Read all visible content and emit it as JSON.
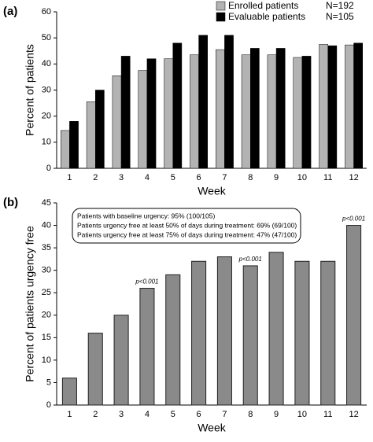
{
  "chart_data": [
    {
      "type": "bar",
      "panel_label": "(a)",
      "y_label": "Percent of patients",
      "x_label": "Week",
      "categories": [
        "1",
        "2",
        "3",
        "4",
        "5",
        "6",
        "7",
        "8",
        "9",
        "10",
        "11",
        "12"
      ],
      "series": [
        {
          "name": "Enrolled patients",
          "n": "N=192",
          "color": "#b3b3b3",
          "values": [
            14.5,
            25.5,
            35.5,
            37.5,
            42,
            43.5,
            45.5,
            43.5,
            43.5,
            42.5,
            47.5,
            47.3
          ]
        },
        {
          "name": "Evaluable patients",
          "n": "N=105",
          "color": "#000000",
          "values": [
            18,
            30,
            43,
            42,
            48,
            51,
            51,
            46,
            46,
            43,
            47,
            48
          ]
        }
      ],
      "ylim": [
        0,
        60
      ],
      "yticks": [
        0,
        10,
        20,
        30,
        40,
        50,
        60
      ],
      "legend": "top-right"
    },
    {
      "type": "bar",
      "panel_label": "(b)",
      "y_label": "Percent of patients urgency free",
      "x_label": "Week",
      "categories": [
        "1",
        "2",
        "3",
        "4",
        "5",
        "6",
        "7",
        "8",
        "9",
        "10",
        "11",
        "12"
      ],
      "values": [
        6,
        16,
        20,
        26,
        29,
        32,
        33,
        31,
        34,
        32,
        32,
        40
      ],
      "color": "#8a8a8a",
      "ylim": [
        0,
        45
      ],
      "yticks": [
        0,
        5,
        10,
        15,
        20,
        25,
        30,
        35,
        40,
        45
      ],
      "annotations": [
        {
          "category": "4",
          "text": "p<0.001"
        },
        {
          "category": "8",
          "text": "p<0.001"
        },
        {
          "category": "12",
          "text": "p<0.001"
        }
      ],
      "text_box": [
        "Patients with baseline urgency: 95% (100/105)",
        "Patients urgency free at least 50% of days during treatment: 69% (69/100)",
        "Patients urgency free at least 75% of days during treatment: 47% (47/100)"
      ]
    }
  ]
}
